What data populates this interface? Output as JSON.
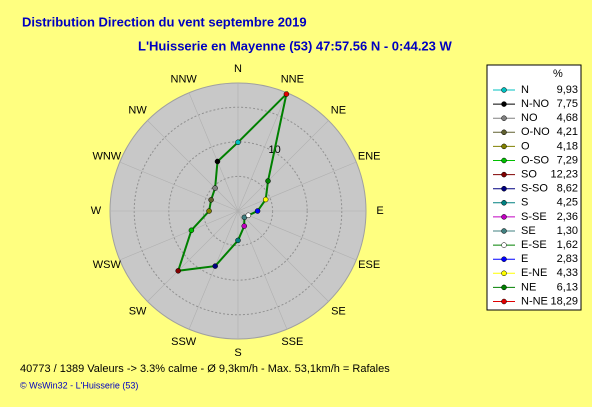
{
  "chart_data": {
    "type": "radar",
    "title": "Distribution Direction du vent   septembre 2019",
    "subtitle": "L'Huisserie en Mayenne (53) 47:57.56 N - 0:44.23 W",
    "directions": [
      "N",
      "NNW",
      "NW",
      "WNW",
      "W",
      "WSW",
      "SW",
      "SSW",
      "S",
      "SSE",
      "SE",
      "ESE",
      "E",
      "ENE",
      "NE",
      "NNE"
    ],
    "legend_title": "%",
    "names": [
      "N",
      "N-NO",
      "NO",
      "O-NO",
      "O",
      "O-SO",
      "SO",
      "S-SO",
      "S",
      "S-SE",
      "SE",
      "E-SE",
      "E",
      "E-NE",
      "NE",
      "N-NE"
    ],
    "values": [
      9.93,
      7.75,
      4.68,
      4.21,
      4.18,
      7.29,
      12.23,
      8.62,
      4.25,
      2.36,
      1.3,
      1.62,
      2.83,
      4.33,
      6.13,
      18.29
    ],
    "value_labels": [
      "9,93",
      "7,75",
      "4,68",
      "4,21",
      "4,18",
      "7,29",
      "12,23",
      "8,62",
      "4,25",
      "2,36",
      "1,30",
      "1,62",
      "2,83",
      "4,33",
      "6,13",
      "18,29"
    ],
    "colors": [
      "#00c0c0",
      "#000000",
      "#808080",
      "#606030",
      "#808000",
      "#00c000",
      "#800000",
      "#000080",
      "#008080",
      "#c000c0",
      "#408080",
      "#ffffff",
      "#0000ff",
      "#ffff00",
      "#008000",
      "#e00000"
    ],
    "line_color": "#008000",
    "rlim": [
      0,
      18.5
    ],
    "rgrid": [
      5,
      10,
      15
    ],
    "rticks": [
      10
    ],
    "footer": "40773 / 1389 Valeurs  -> 3.3% calme   -   Ø 9,3km/h  -  Max. 53,1km/h = Rafales",
    "credit": "© WsWin32  -  L'Huisserie (53)"
  }
}
